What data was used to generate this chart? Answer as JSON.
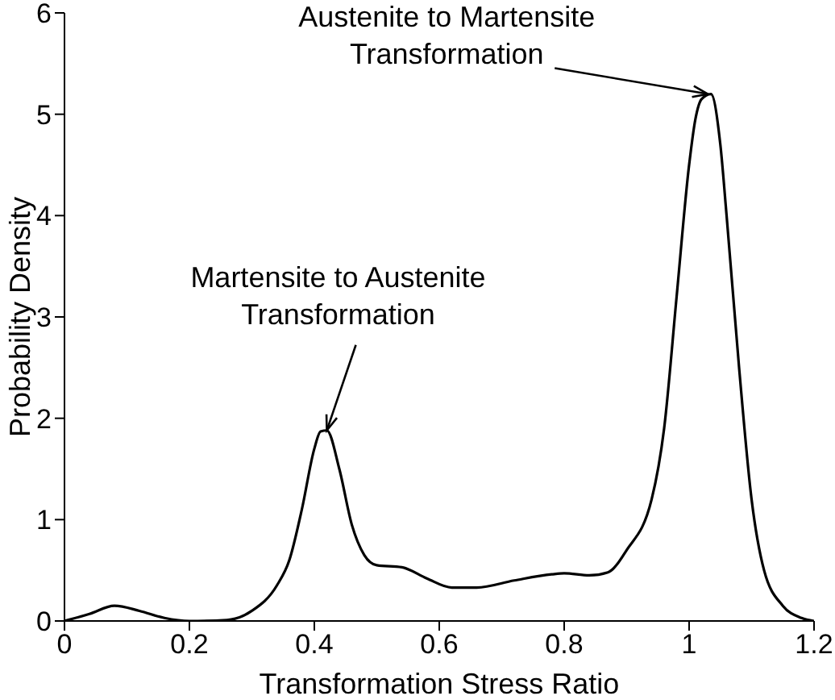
{
  "chart_data": {
    "type": "line",
    "xlabel": "Transformation Stress Ratio",
    "ylabel": "Probability Density",
    "x": [
      0,
      0.04,
      0.08,
      0.12,
      0.16,
      0.2,
      0.26,
      0.3,
      0.34,
      0.36,
      0.38,
      0.4,
      0.41,
      0.42,
      0.44,
      0.46,
      0.48,
      0.5,
      0.54,
      0.58,
      0.62,
      0.66,
      0.72,
      0.78,
      0.8,
      0.84,
      0.87,
      0.9,
      0.94,
      0.96,
      0.98,
      1.0,
      1.01,
      1.02,
      1.035,
      1.05,
      1.06,
      1.08,
      1.1,
      1.12,
      1.15,
      1.18,
      1.2
    ],
    "series": [
      {
        "color": "#000000",
        "values": [
          0,
          0.07,
          0.15,
          0.1,
          0.03,
          0,
          0.01,
          0.1,
          0.35,
          0.6,
          1.1,
          1.7,
          1.87,
          1.88,
          1.5,
          0.95,
          0.65,
          0.55,
          0.53,
          0.42,
          0.33,
          0.33,
          0.4,
          0.46,
          0.47,
          0.45,
          0.48,
          0.7,
          1.2,
          1.9,
          3.2,
          4.5,
          4.95,
          5.15,
          5.2,
          4.7,
          4.0,
          2.5,
          1.2,
          0.5,
          0.15,
          0.03,
          0
        ]
      }
    ],
    "xlim": [
      0,
      1.2
    ],
    "xticks": [
      0,
      {
        "value": 0.2,
        "label": "0.2"
      },
      {
        "value": 0.4,
        "label": "0.4"
      },
      {
        "value": 0.6,
        "label": "0.6"
      },
      {
        "value": 0.8,
        "label": "0.8"
      },
      1,
      {
        "value": 1.2,
        "label": "1.2"
      }
    ],
    "ylim": [
      0,
      6
    ],
    "yticks": [
      0,
      1,
      2,
      3,
      4,
      5,
      6
    ],
    "grid": false,
    "legend": false,
    "marker": "none",
    "line_style": "solid",
    "annotations": [
      {
        "text": "Austenite to Martensite Transformation",
        "x": 1.03,
        "y": 5.2
      },
      {
        "text": "Martensite to Austenite Transformation",
        "x": 0.42,
        "y": 1.88
      }
    ]
  }
}
